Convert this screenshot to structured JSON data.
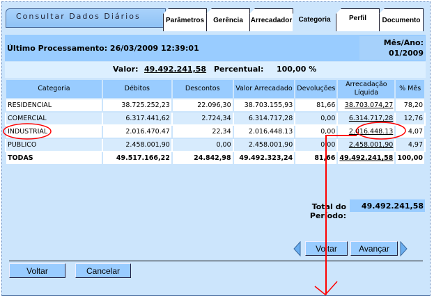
{
  "title": "Consultar Dados Diários",
  "tabs": [
    "Parâmetros",
    "Gerência",
    "Arrecadador",
    "Categoria",
    "Perfil",
    "Documento"
  ],
  "active_tab": "Categoria",
  "ultimo": "Último Processamento: 26/03/2009 12:39:01",
  "mes_label": "Mês/Ano:",
  "mes_value": "01/2009",
  "valor_label": "Valor:",
  "valor_value": "49.492.241,58",
  "percentual_label": "Percentual:",
  "percentual_value": "100,00 %",
  "columns": [
    "Categoria",
    "Débitos",
    "Descontos",
    "Valor Arrecadado",
    "Devoluções",
    "Arrecadação Líquida",
    "% Mês"
  ],
  "rows": [
    [
      "RESIDENCIAL",
      "38.725.252,23",
      "22.096,30",
      "38.703.155,93",
      "81,66",
      "38.703.074,27",
      "78,20"
    ],
    [
      "COMERCIAL",
      "6.317.441,62",
      "2.724,34",
      "6.314.717,28",
      "0,00",
      "6.314.717,28",
      "12,76"
    ],
    [
      "INDUSTRIAL",
      "2.016.470.47",
      "22,34",
      "2.016.448.13",
      "0,00",
      "2.016.448.13",
      "4,07"
    ],
    [
      "PUBLICO",
      "2.458.001,90",
      "0,00",
      "2.458.001,90",
      "0,00",
      "2.458.001,90",
      "4,97"
    ],
    [
      "TODAS",
      "49.517.166,22",
      "24.842,98",
      "49.492.323,24",
      "81,66",
      "49.492.241,58",
      "100,00"
    ]
  ],
  "total_label": "Total do Período:",
  "total_value": "49.492.241,58",
  "nav": {
    "voltar": "Voltar",
    "avancar": "Avançar"
  },
  "footer": {
    "voltar": "Voltar",
    "cancelar": "Cancelar"
  },
  "annotation_color": "#ff0000"
}
